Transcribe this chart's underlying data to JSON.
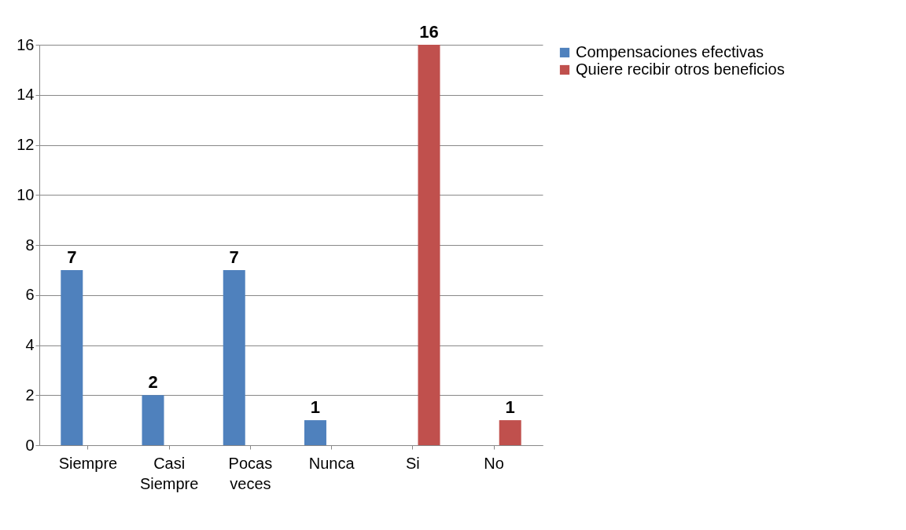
{
  "chart_data": {
    "type": "bar",
    "categories": [
      "Siempre",
      "Casi Siempre",
      "Pocas veces",
      "Nunca",
      "Si",
      "No"
    ],
    "series": [
      {
        "name": "Compensaciones efectivas",
        "color": "#4f81bd",
        "values": [
          7,
          2,
          7,
          1,
          null,
          null
        ]
      },
      {
        "name": "Quiere recibir otros beneficios",
        "color": "#c0504d",
        "values": [
          null,
          null,
          null,
          null,
          16,
          1
        ]
      }
    ],
    "ylim": [
      0,
      16
    ],
    "yticks": [
      0,
      2,
      4,
      6,
      8,
      10,
      12,
      14,
      16
    ],
    "grid": "y",
    "legend": "right",
    "data_labels": true
  }
}
